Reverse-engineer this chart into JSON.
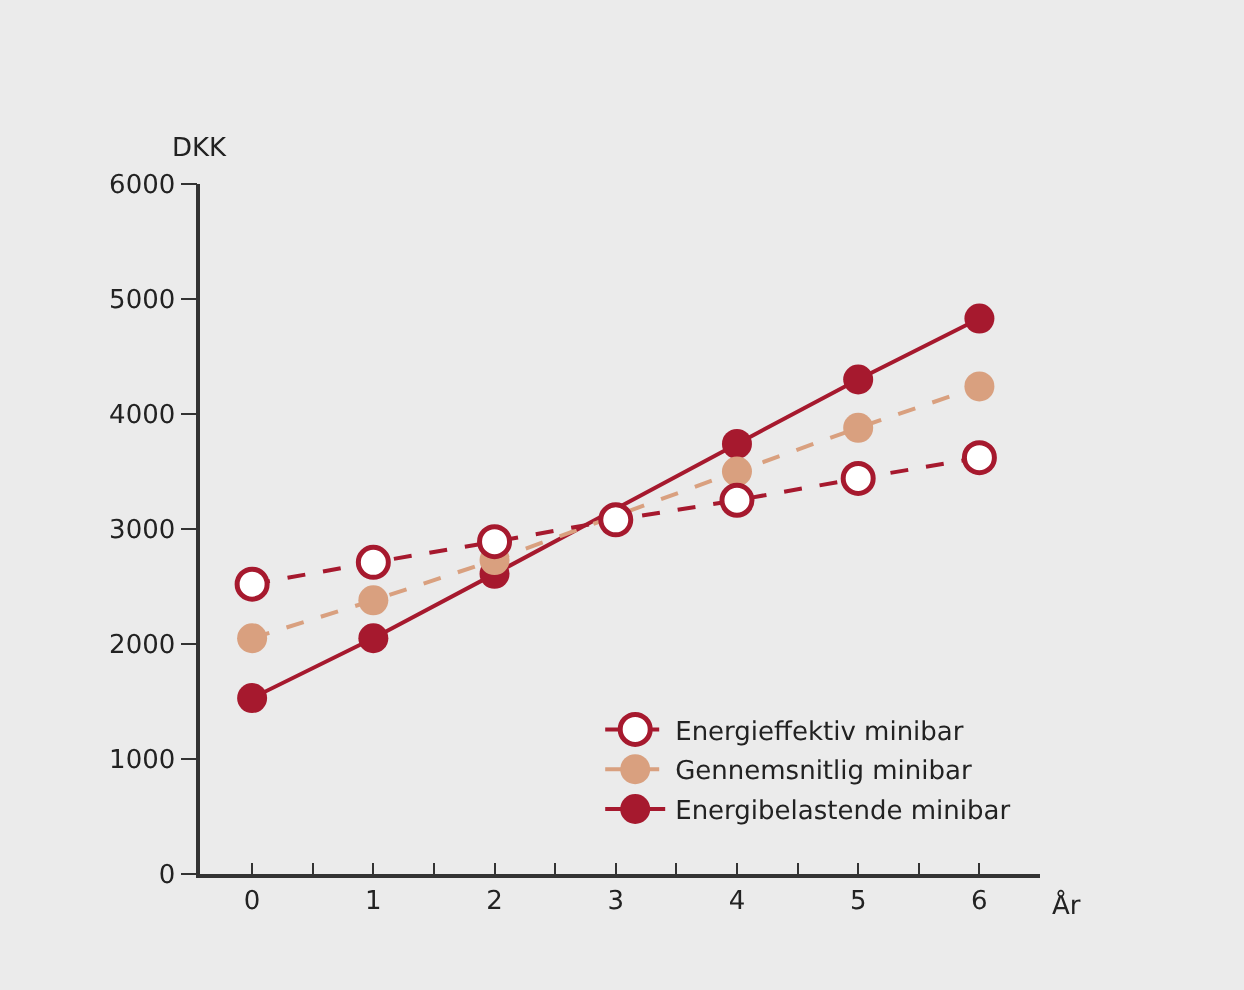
{
  "chart_data": {
    "type": "line",
    "xlabel": "År",
    "ylabel": "DKK",
    "x": [
      0,
      1,
      2,
      3,
      4,
      5,
      6
    ],
    "xlim": [
      -0.43,
      6.5
    ],
    "xticks": [
      0,
      {
        "value": 0.5,
        "label": null
      },
      1,
      {
        "value": 1.5,
        "label": null
      },
      2,
      {
        "value": 2.5,
        "label": null
      },
      3,
      {
        "value": 3.5,
        "label": null
      },
      4,
      {
        "value": 4.5,
        "label": null
      },
      5,
      {
        "value": 5.5,
        "label": null
      },
      6
    ],
    "ylim": [
      0,
      6000
    ],
    "yticks": [
      0,
      1000,
      2000,
      3000,
      4000,
      5000,
      6000
    ],
    "grid": false,
    "legend": "bottom right",
    "series": [
      {
        "name": "Energieffektiv minibar",
        "color": "#a6192e",
        "line_style": "dashed",
        "marker": "circle-open",
        "values": [
          2520,
          2710,
          2890,
          3080,
          3250,
          3440,
          3620
        ]
      },
      {
        "name": "Gennemsnitlig minibar",
        "color": "#d9a07f",
        "line_style": "dashed",
        "marker": "circle",
        "values": [
          2050,
          2380,
          2730,
          null,
          3500,
          3880,
          4240
        ]
      },
      {
        "name": "Energibelastende minibar",
        "color": "#a6192e",
        "line_style": "solid",
        "marker": "circle",
        "values": [
          1530,
          2050,
          2610,
          null,
          3740,
          4300,
          4830
        ]
      }
    ]
  }
}
